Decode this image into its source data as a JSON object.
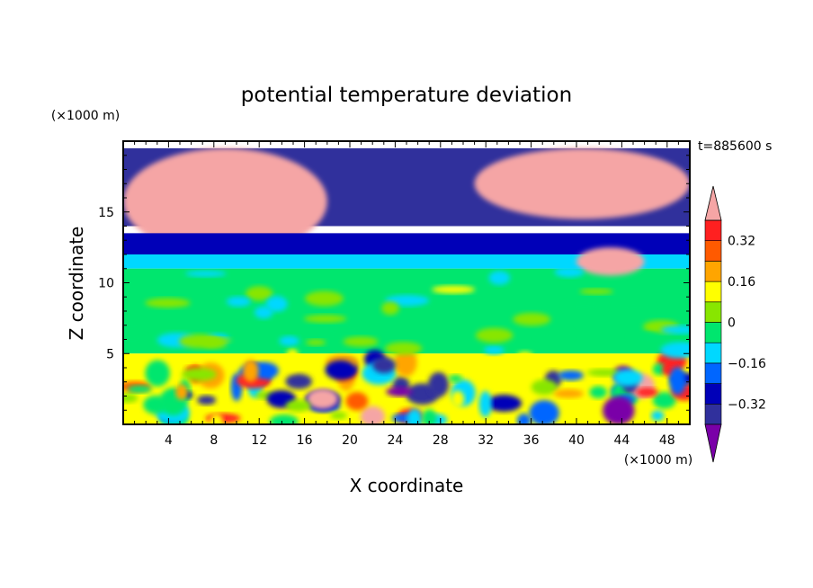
{
  "chart_data": {
    "type": "heatmap",
    "title": "potential temperature deviation",
    "xlabel": "X coordinate",
    "ylabel": "Z coordinate",
    "x_unit": "(×1000 m)",
    "y_unit": "(×1000 m)",
    "time_label": "t=885600 s",
    "xlim": [
      0,
      50
    ],
    "ylim": [
      0,
      20
    ],
    "x_ticks": [
      4,
      8,
      12,
      16,
      20,
      24,
      28,
      32,
      36,
      40,
      44,
      48
    ],
    "y_ticks": [
      5,
      10,
      15
    ],
    "colorbar": {
      "tick_labels": [
        "0.32",
        "0.16",
        "0",
        "-0.16",
        "-0.32"
      ],
      "tick_values": [
        0.32,
        0.16,
        0,
        -0.16,
        -0.32
      ],
      "levels": [
        -0.4,
        -0.32,
        -0.24,
        -0.16,
        -0.08,
        0,
        0.08,
        0.16,
        0.24,
        0.32,
        0.4
      ],
      "colors": [
        "#7a00a8",
        "#30309c",
        "#0000b8",
        "#0066ff",
        "#00d8ff",
        "#00e66e",
        "#88e600",
        "#ffff00",
        "#ffa500",
        "#ff5a00",
        "#ff2020",
        "#f5a5a5"
      ],
      "extend": "both"
    },
    "regions": [
      {
        "label": "upper layer background",
        "x": [
          0,
          50
        ],
        "z": [
          14,
          19.5
        ],
        "value": -0.36
      },
      {
        "label": "warm anomaly upper left",
        "x": [
          0,
          18
        ],
        "z": [
          12,
          19.5
        ],
        "value": 0.45
      },
      {
        "label": "warm anomaly upper right",
        "x": [
          31,
          50
        ],
        "z": [
          14.5,
          19.5
        ],
        "value": 0.45
      },
      {
        "label": "cold band",
        "x": [
          0,
          50
        ],
        "z": [
          12,
          13.5
        ],
        "value": -0.3
      },
      {
        "label": "cool band",
        "x": [
          0,
          50
        ],
        "z": [
          11,
          12
        ],
        "value": -0.14
      },
      {
        "label": "mid layer",
        "x": [
          0,
          50
        ],
        "z": [
          5,
          11
        ],
        "value": -0.02
      },
      {
        "label": "warm patch mid right",
        "x": [
          40,
          46
        ],
        "z": [
          10.5,
          12.5
        ],
        "value": 0.45
      },
      {
        "label": "boundary layer",
        "x": [
          0,
          50
        ],
        "z": [
          0,
          5
        ],
        "value": 0.1
      }
    ]
  }
}
